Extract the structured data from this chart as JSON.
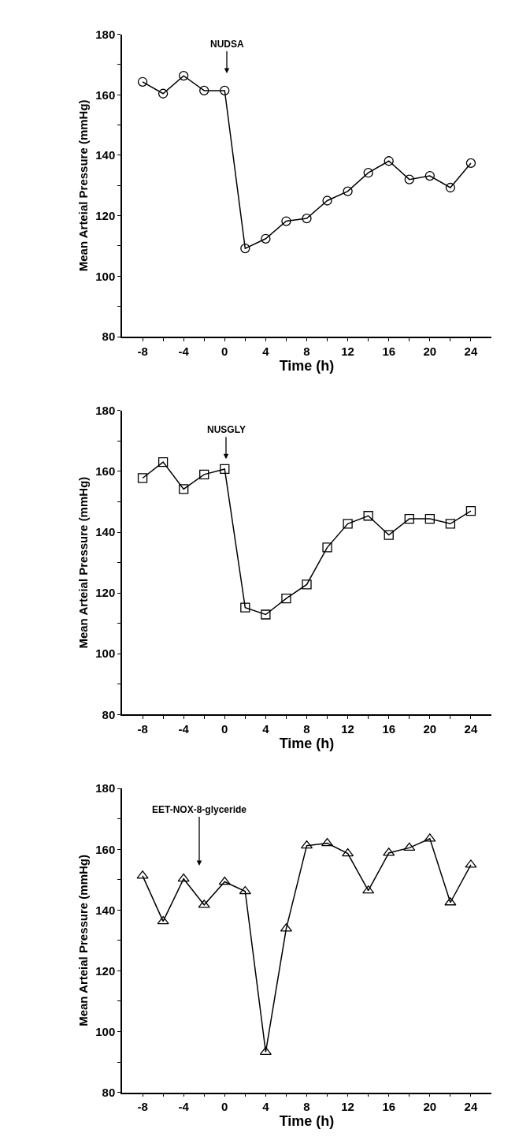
{
  "chart_data": [
    {
      "type": "line",
      "xlabel": "Time (h)",
      "ylabel": "Mean Arteial Pressure (mmHg)",
      "marker": "circle",
      "line_style": "solid",
      "x": [
        -8,
        -6,
        -4,
        -2,
        0,
        2,
        4,
        6,
        8,
        10,
        12,
        14,
        16,
        18,
        20,
        22,
        24
      ],
      "series": [
        {
          "color": "#000000",
          "values": [
            164.3,
            160.4,
            166.3,
            161.4,
            161.4,
            109.2,
            112.4,
            118.2,
            119.1,
            125.0,
            128.1,
            134.2,
            138.1,
            132.0,
            133.2,
            129.3,
            137.4
          ]
        }
      ],
      "xlim": [
        -10,
        26
      ],
      "xticks": [
        -8,
        {
          "value": -6,
          "label": null
        },
        -4,
        {
          "value": -2,
          "label": null
        },
        0,
        {
          "value": 2,
          "label": null
        },
        4,
        {
          "value": 6,
          "label": null
        },
        8,
        {
          "value": 10,
          "label": null
        },
        12,
        {
          "value": 14,
          "label": null
        },
        16,
        {
          "value": 18,
          "label": null
        },
        20,
        {
          "value": 22,
          "label": null
        },
        24
      ],
      "ylim": [
        80,
        180
      ],
      "yticks": [
        80,
        {
          "value": 90,
          "label": null
        },
        100,
        {
          "value": 110,
          "label": null
        },
        120,
        {
          "value": 130,
          "label": null
        },
        140,
        {
          "value": 150,
          "label": null
        },
        160,
        {
          "value": 170,
          "label": null
        },
        180
      ],
      "annotations": [
        "NUDSA"
      ]
    },
    {
      "type": "line",
      "xlabel": "Time (h)",
      "ylabel": "Mean Arteial Pressure (mmHg)",
      "marker": "square",
      "line_style": "solid",
      "x": [
        -8,
        -6,
        -4,
        -2,
        0,
        2,
        4,
        6,
        8,
        10,
        12,
        14,
        16,
        18,
        20,
        22,
        24
      ],
      "series": [
        {
          "color": "#000000",
          "values": [
            157.8,
            163.1,
            154.2,
            159.0,
            160.8,
            115.2,
            112.9,
            118.2,
            122.8,
            135.0,
            142.8,
            145.4,
            139.1,
            144.4,
            144.4,
            142.8,
            147.0
          ]
        }
      ],
      "xlim": [
        -10,
        26
      ],
      "xticks": [
        -8,
        {
          "value": -6,
          "label": null
        },
        -4,
        {
          "value": -2,
          "label": null
        },
        0,
        {
          "value": 2,
          "label": null
        },
        4,
        {
          "value": 6,
          "label": null
        },
        8,
        {
          "value": 10,
          "label": null
        },
        12,
        {
          "value": 14,
          "label": null
        },
        16,
        {
          "value": 18,
          "label": null
        },
        20,
        {
          "value": 22,
          "label": null
        },
        24
      ],
      "ylim": [
        80,
        180
      ],
      "yticks": [
        80,
        {
          "value": 90,
          "label": null
        },
        100,
        {
          "value": 110,
          "label": null
        },
        120,
        {
          "value": 130,
          "label": null
        },
        140,
        {
          "value": 150,
          "label": null
        },
        160,
        {
          "value": 170,
          "label": null
        },
        180
      ],
      "annotations": [
        "NUSGLY"
      ]
    },
    {
      "type": "line",
      "xlabel": "Time (h)",
      "ylabel": "Mean Arteial Pressure (mmHg)",
      "marker": "triangle",
      "line_style": "solid",
      "x": [
        -8,
        -6,
        -4,
        -2,
        0,
        2,
        4,
        6,
        8,
        10,
        12,
        14,
        16,
        18,
        20,
        22,
        24
      ],
      "series": [
        {
          "color": "#000000",
          "values": [
            151.3,
            136.3,
            150.3,
            141.7,
            149.3,
            146.2,
            93.3,
            133.9,
            161.2,
            162.0,
            158.6,
            146.4,
            158.8,
            160.5,
            163.5,
            142.5,
            154.9
          ]
        }
      ],
      "xlim": [
        -10,
        26
      ],
      "xticks": [
        -8,
        {
          "value": -6,
          "label": null
        },
        -4,
        {
          "value": -2,
          "label": null
        },
        0,
        {
          "value": 2,
          "label": null
        },
        4,
        {
          "value": 6,
          "label": null
        },
        8,
        {
          "value": 10,
          "label": null
        },
        12,
        {
          "value": 14,
          "label": null
        },
        16,
        {
          "value": 18,
          "label": null
        },
        20,
        {
          "value": 22,
          "label": null
        },
        24
      ],
      "ylim": [
        80,
        180
      ],
      "yticks": [
        80,
        {
          "value": 90,
          "label": null
        },
        100,
        {
          "value": 110,
          "label": null
        },
        120,
        {
          "value": 130,
          "label": null
        },
        140,
        {
          "value": 150,
          "label": null
        },
        160,
        {
          "value": 170,
          "label": null
        },
        180
      ],
      "annotations": [
        "EET-NOX-8-glyceride"
      ]
    }
  ]
}
